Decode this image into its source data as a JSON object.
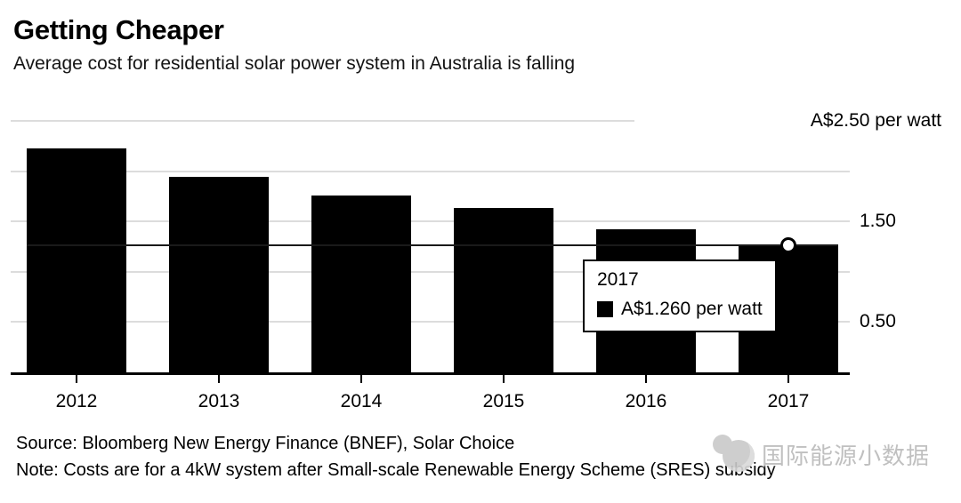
{
  "header": {
    "title": "Getting Cheaper",
    "subtitle": "Average cost for residential solar power system in Australia is falling"
  },
  "chart_data": {
    "type": "bar",
    "title": "Getting Cheaper",
    "subtitle": "Average cost for residential solar power system in Australia is falling",
    "categories": [
      "2012",
      "2013",
      "2014",
      "2015",
      "2016",
      "2017"
    ],
    "values": [
      2.23,
      1.94,
      1.76,
      1.63,
      1.42,
      1.26
    ],
    "unit": "A$ per watt",
    "ylim": [
      0,
      2.5
    ],
    "gridlines": [
      0.5,
      1.0,
      1.5,
      2.0,
      2.5
    ],
    "y_axis_labels": [
      {
        "value": 2.5,
        "label": "A$2.50 per watt"
      },
      {
        "value": 1.5,
        "label": "1.50"
      },
      {
        "value": 0.5,
        "label": "0.50"
      }
    ],
    "grid": true,
    "legend_position": "none",
    "highlight": {
      "category": "2017",
      "value": 1.26
    }
  },
  "tooltip": {
    "title": "2017",
    "value_label": "A$1.260 per watt"
  },
  "footer": {
    "source": "Source: Bloomberg New Energy Finance (BNEF), Solar Choice",
    "note": "Note: Costs are for a 4kW system after Small-scale Renewable Energy Scheme (SRES) subsidy"
  },
  "watermark": {
    "text": "国际能源小数据"
  },
  "colors": {
    "bar": "#000000",
    "gridline": "#dcdcdc",
    "axis_line": "#000000",
    "hover_line": "#1a1a1a",
    "text": "#000000",
    "watermark": "#c0c0c0",
    "tooltip_border": "#000000",
    "background": "#ffffff"
  }
}
